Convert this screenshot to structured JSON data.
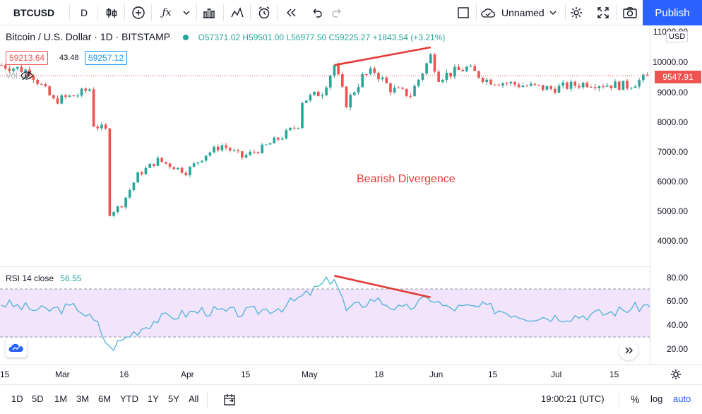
{
  "toolbar": {
    "symbol": "BTCUSD",
    "interval": "D",
    "layout_name": "Unnamed",
    "publish_label": "Publish",
    "icons": [
      "candles-icon",
      "add-icon",
      "fx-icon",
      "chevron-down-icon",
      "bar-chart-icon",
      "indicators-icon",
      "alert-icon",
      "replay-icon",
      "undo-icon",
      "redo-icon",
      "fullscreen-square-icon",
      "cloud-icon",
      "chevron-down-icon",
      "gear-icon",
      "expand-icon",
      "camera-icon"
    ]
  },
  "legend": {
    "title": "Bitcoin / U.S. Dollar · 1D · BITSTAMP",
    "open": "O57371.02",
    "high": "H59501.00",
    "low": "L56977.50",
    "close": "C59225.27",
    "change": "+1843.54 (+3.21%)",
    "sell_price": "59213.64",
    "spread": "43.48",
    "buy_price": "59257.12",
    "vol_label": "Vol"
  },
  "annotation": {
    "text": "Bearish Divergence",
    "color": "#e53935"
  },
  "price_axis": {
    "currency": "USD",
    "labels": [
      "11000.00",
      "10000.00",
      "9000.00",
      "8000.00",
      "7000.00",
      "6000.00",
      "5000.00",
      "4000.00"
    ],
    "last_price": "9547.91",
    "last_price_color": "#ef5350"
  },
  "rsi": {
    "label": "RSI 14 close",
    "value": "56.55",
    "axis_labels": [
      "80.00",
      "60.00",
      "40.00",
      "20.00"
    ],
    "line_color": "#4fb3d9",
    "band_color": "#f1e4fb"
  },
  "time_axis": {
    "labels": [
      "15",
      "Mar",
      "16",
      "Apr",
      "15",
      "May",
      "18",
      "Jun",
      "15",
      "Jul",
      "15"
    ]
  },
  "bottom_bar": {
    "ranges": [
      "1D",
      "5D",
      "1M",
      "3M",
      "6M",
      "YTD",
      "1Y",
      "5Y",
      "All"
    ],
    "time": "19:00:21 (UTC)",
    "percent_label": "%",
    "log_label": "log",
    "auto_label": "auto"
  },
  "chart_data": {
    "type": "candlestick",
    "title": "Bitcoin / U.S. Dollar · 1D · BITSTAMP",
    "ylabel": "USD",
    "ylim": [
      3500,
      11000
    ],
    "price_waypoints": [
      [
        "Feb 15",
        9900
      ],
      [
        "Feb 22",
        9700
      ],
      [
        "Feb 28",
        8700
      ],
      [
        "Mar 5",
        8900
      ],
      [
        "Mar 8",
        9100
      ],
      [
        "Mar 9",
        7900
      ],
      [
        "Mar 12",
        7700
      ],
      [
        "Mar 13",
        4900
      ],
      [
        "Mar 16",
        5200
      ],
      [
        "Mar 20",
        6200
      ],
      [
        "Mar 25",
        6700
      ],
      [
        "Apr 1",
        6300
      ],
      [
        "Apr 6",
        6900
      ],
      [
        "Apr 10",
        7200
      ],
      [
        "Apr 15",
        6800
      ],
      [
        "Apr 20",
        7100
      ],
      [
        "Apr 25",
        7500
      ],
      [
        "Apr 29",
        7900
      ],
      [
        "Apr 30",
        8700
      ],
      [
        "May 5",
        9000
      ],
      [
        "May 8",
        9900
      ],
      [
        "May 11",
        8600
      ],
      [
        "May 15",
        9500
      ],
      [
        "May 18",
        9700
      ],
      [
        "May 22",
        9100
      ],
      [
        "May 27",
        8900
      ],
      [
        "Jun 1",
        10200
      ],
      [
        "Jun 3",
        9500
      ],
      [
        "Jun 10",
        9800
      ],
      [
        "Jun 15",
        9400
      ],
      [
        "Jun 25",
        9200
      ],
      [
        "Jul 1",
        9100
      ],
      [
        "Jul 10",
        9300
      ],
      [
        "Jul 20",
        9200
      ],
      [
        "Jul 26",
        9548
      ]
    ],
    "rsi_waypoints": [
      [
        "Feb 15",
        58
      ],
      [
        "Feb 25",
        52
      ],
      [
        "Mar 5",
        55
      ],
      [
        "Mar 10",
        40
      ],
      [
        "Mar 13",
        20
      ],
      [
        "Mar 18",
        32
      ],
      [
        "Mar 25",
        45
      ],
      [
        "Apr 5",
        52
      ],
      [
        "Apr 15",
        50
      ],
      [
        "Apr 25",
        55
      ],
      [
        "May 1",
        65
      ],
      [
        "May 8",
        80
      ],
      [
        "May 11",
        52
      ],
      [
        "May 18",
        62
      ],
      [
        "May 25",
        52
      ],
      [
        "Jun 1",
        63
      ],
      [
        "Jun 5",
        54
      ],
      [
        "Jun 15",
        55
      ],
      [
        "Jun 25",
        47
      ],
      [
        "Jul 5",
        47
      ],
      [
        "Jul 15",
        50
      ],
      [
        "Jul 26",
        57
      ]
    ],
    "rsi_bands": [
      70,
      30
    ],
    "divergence": {
      "price": [
        [
          "May 8",
          9900
        ],
        [
          "Jun 1",
          10500
        ]
      ],
      "rsi": [
        [
          "May 8",
          81
        ],
        [
          "Jun 1",
          63
        ]
      ]
    }
  }
}
